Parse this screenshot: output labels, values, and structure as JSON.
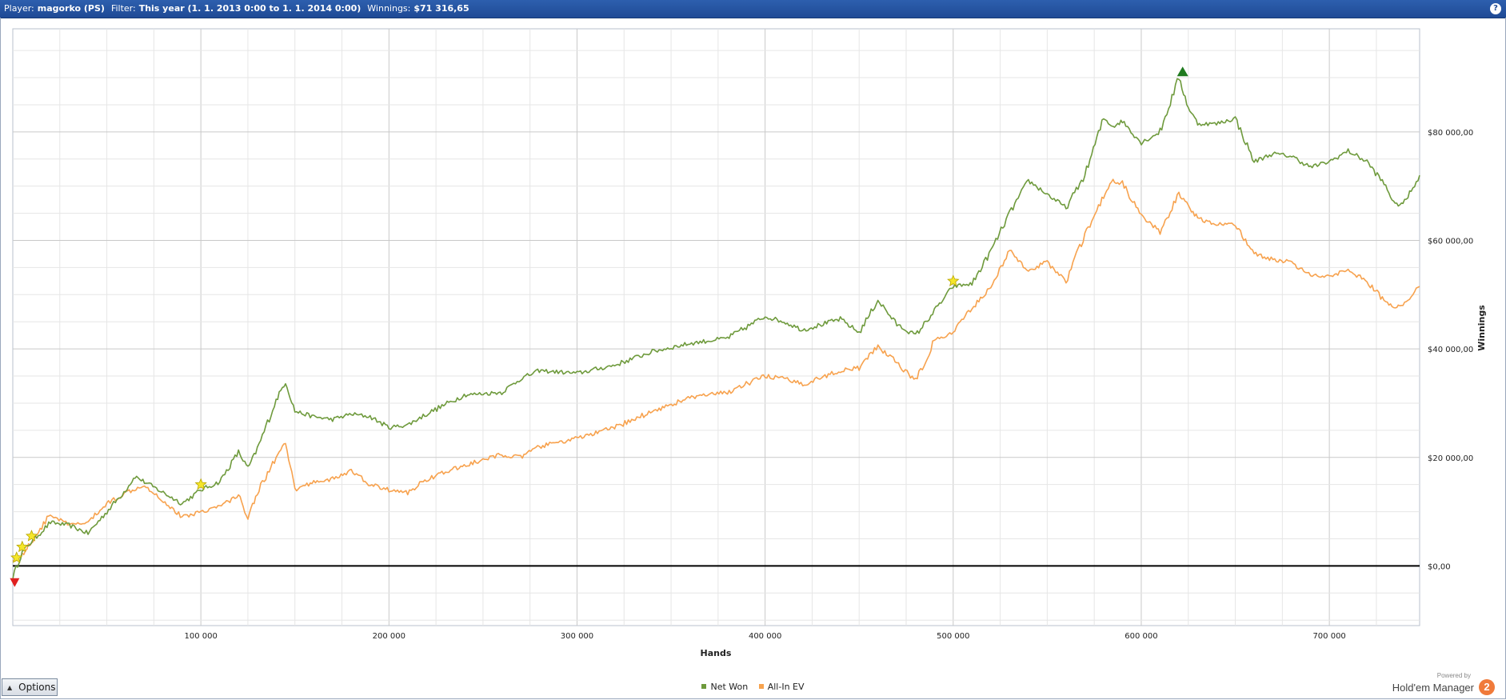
{
  "titlebar": {
    "player_label": "Player:",
    "player_value": "magorko (PS)",
    "filter_label": "Filter:",
    "filter_value": "This year (1. 1. 2013 0:00 to 1. 1. 2014 0:00)",
    "winnings_label": "Winnings:",
    "winnings_value": "$71 316,65",
    "help_glyph": "?"
  },
  "options": {
    "label": "Options",
    "icon": "chevron-up-icon"
  },
  "brand": {
    "powered": "Powered by",
    "name": "Hold'em Manager",
    "badge": "2"
  },
  "chart_data": {
    "type": "line",
    "xlabel": "Hands",
    "ylabel": "Winnings",
    "xlim": [
      0,
      748000
    ],
    "ylim": [
      -11000,
      99000
    ],
    "x_ticks": [
      100000,
      200000,
      300000,
      400000,
      500000,
      600000,
      700000
    ],
    "x_tick_labels": [
      "100 000",
      "200 000",
      "300 000",
      "400 000",
      "500 000",
      "600 000",
      "700 000"
    ],
    "y_ticks": [
      0,
      20000,
      40000,
      60000,
      80000
    ],
    "y_tick_labels": [
      "$0,00",
      "$20 000,00",
      "$40 000,00",
      "$60 000,00",
      "$80 000,00"
    ],
    "grid": true,
    "legend_position": "bottom-center",
    "series": [
      {
        "name": "Net Won",
        "color": "#6e9a3c",
        "x": [
          0,
          5000,
          10000,
          20000,
          30000,
          40000,
          50000,
          60000,
          65000,
          70000,
          80000,
          90000,
          100000,
          110000,
          120000,
          125000,
          130000,
          140000,
          145000,
          150000,
          160000,
          170000,
          180000,
          190000,
          200000,
          210000,
          220000,
          240000,
          260000,
          270000,
          280000,
          300000,
          320000,
          340000,
          360000,
          380000,
          400000,
          410000,
          420000,
          440000,
          450000,
          460000,
          470000,
          480000,
          490000,
          500000,
          510000,
          520000,
          530000,
          540000,
          550000,
          560000,
          570000,
          580000,
          585000,
          590000,
          600000,
          610000,
          620000,
          625000,
          630000,
          640000,
          650000,
          660000,
          670000,
          680000,
          690000,
          700000,
          710000,
          720000,
          730000,
          735000,
          740000,
          748000
        ],
        "values": [
          -2000,
          2500,
          4500,
          8000,
          7500,
          6000,
          10000,
          14000,
          16500,
          15500,
          13500,
          11500,
          14000,
          15500,
          21000,
          18000,
          21500,
          30500,
          34000,
          28500,
          27500,
          27000,
          28000,
          27500,
          25500,
          26000,
          28000,
          31500,
          32000,
          34500,
          36000,
          35500,
          37000,
          39500,
          41000,
          42000,
          46000,
          45000,
          43500,
          45500,
          43000,
          49000,
          44500,
          42500,
          47000,
          51500,
          52000,
          58000,
          65000,
          71000,
          68500,
          66000,
          72000,
          82500,
          81000,
          82000,
          78000,
          80000,
          90000,
          84500,
          81500,
          81500,
          82500,
          74500,
          76000,
          75500,
          73500,
          74500,
          76500,
          74500,
          70000,
          66500,
          67000,
          72000
        ]
      },
      {
        "name": "All-In EV",
        "color": "#f7a24e",
        "x": [
          0,
          5000,
          10000,
          20000,
          30000,
          40000,
          50000,
          60000,
          70000,
          80000,
          90000,
          100000,
          110000,
          120000,
          125000,
          130000,
          140000,
          145000,
          150000,
          160000,
          170000,
          180000,
          190000,
          200000,
          210000,
          220000,
          240000,
          260000,
          270000,
          280000,
          300000,
          320000,
          340000,
          360000,
          380000,
          400000,
          410000,
          420000,
          440000,
          450000,
          460000,
          470000,
          480000,
          490000,
          500000,
          510000,
          520000,
          530000,
          540000,
          550000,
          560000,
          570000,
          580000,
          585000,
          590000,
          600000,
          610000,
          620000,
          625000,
          630000,
          640000,
          650000,
          660000,
          670000,
          680000,
          690000,
          700000,
          710000,
          720000,
          730000,
          735000,
          740000,
          748000
        ],
        "values": [
          1000,
          2000,
          4500,
          9500,
          7500,
          8000,
          11500,
          13500,
          15000,
          12000,
          9000,
          10000,
          11000,
          13000,
          9000,
          13500,
          20000,
          22500,
          14000,
          15500,
          16000,
          17500,
          15000,
          14000,
          13500,
          16000,
          18500,
          20500,
          20000,
          22000,
          23500,
          25500,
          28500,
          31000,
          32000,
          35000,
          34500,
          33500,
          36000,
          36500,
          40500,
          37500,
          34000,
          41500,
          43000,
          47500,
          51500,
          58000,
          54500,
          56000,
          52500,
          61000,
          68000,
          71000,
          70500,
          64500,
          61500,
          68500,
          66500,
          64000,
          63000,
          63000,
          57500,
          56500,
          56000,
          53500,
          53500,
          54500,
          52500,
          48500,
          47500,
          48500,
          51500
        ]
      }
    ],
    "markers": [
      {
        "type": "triangle-down",
        "color": "#e02020",
        "x": 1000,
        "y": -3000,
        "label": "min"
      },
      {
        "type": "star",
        "color": "#f5e62a",
        "x": 2000,
        "y": 1500
      },
      {
        "type": "star",
        "color": "#f5e62a",
        "x": 5000,
        "y": 3500
      },
      {
        "type": "star",
        "color": "#f5e62a",
        "x": 10000,
        "y": 5500
      },
      {
        "type": "star",
        "color": "#f5e62a",
        "x": 100000,
        "y": 15000
      },
      {
        "type": "star",
        "color": "#f5e62a",
        "x": 500000,
        "y": 52500
      },
      {
        "type": "triangle-up",
        "color": "#1f7a1f",
        "x": 622000,
        "y": 91000,
        "label": "max"
      }
    ]
  }
}
